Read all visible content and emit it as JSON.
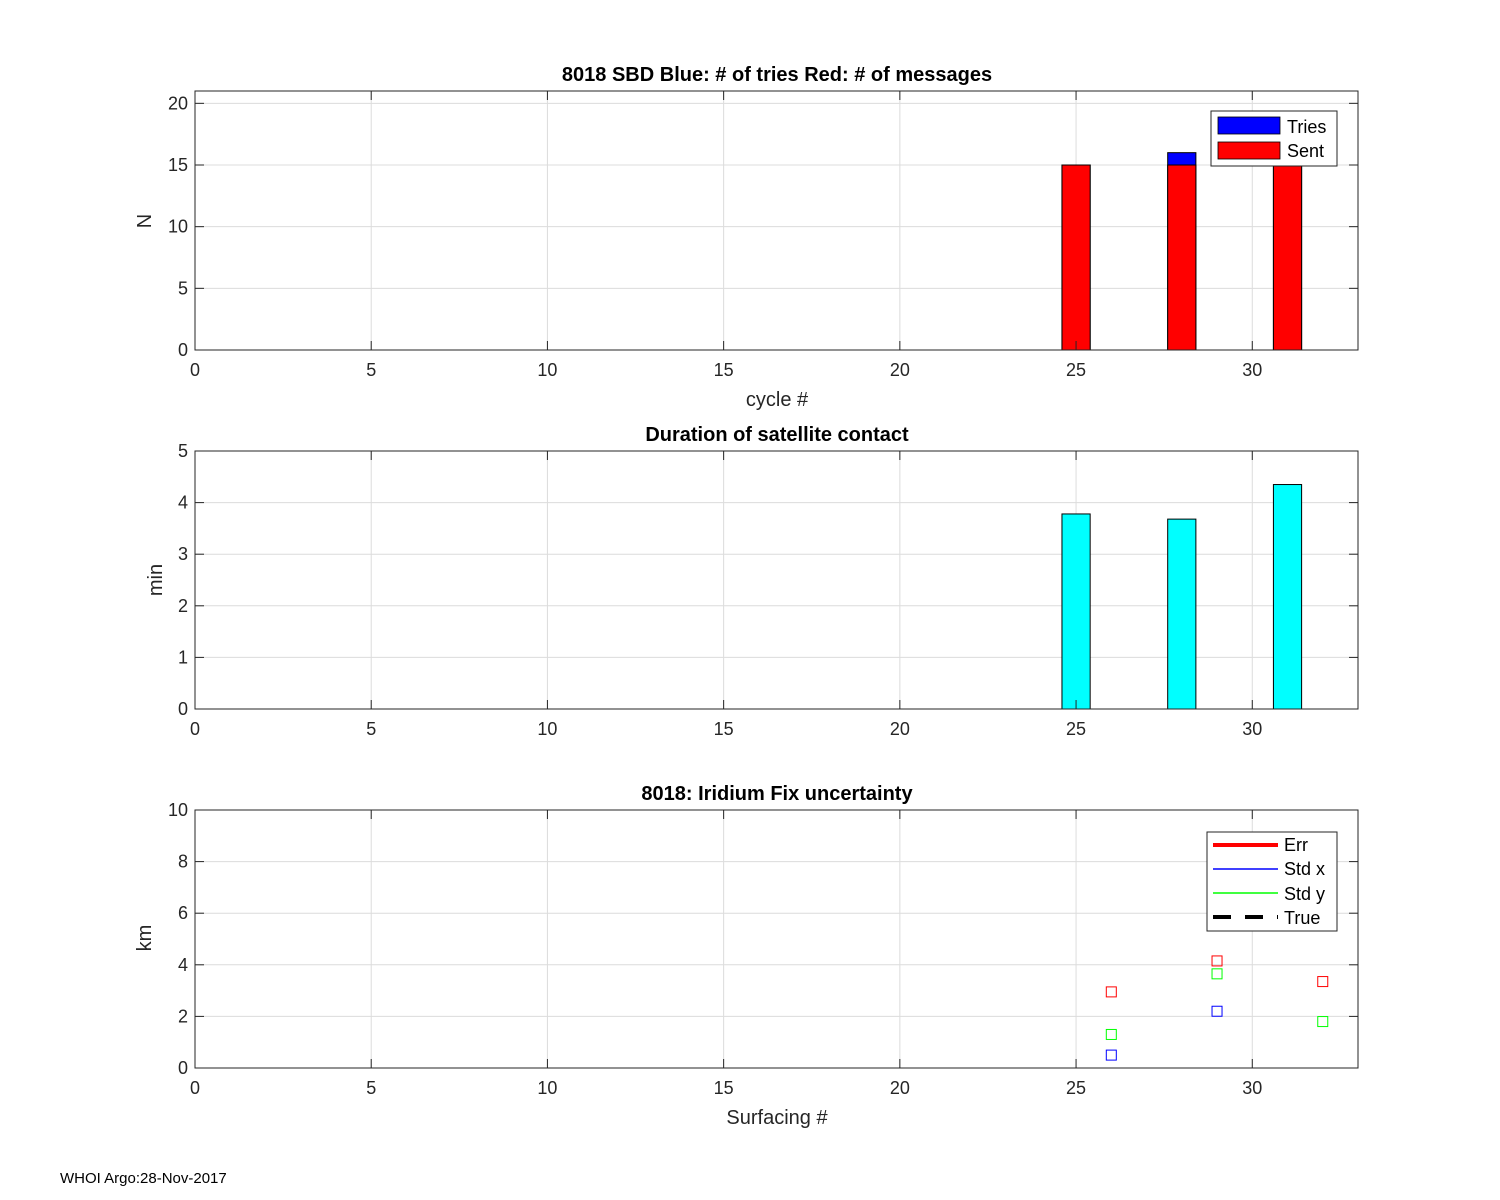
{
  "footer": "WHOI Argo:28-Nov-2017",
  "chart_data": [
    {
      "type": "bar",
      "title": "8018 SBD  Blue: # of tries   Red: # of messages",
      "xlabel": "cycle #",
      "ylabel": "N",
      "xlim": [
        0,
        33
      ],
      "ylim": [
        0,
        21
      ],
      "xticks": [
        0,
        5,
        10,
        15,
        20,
        25,
        30
      ],
      "yticks": [
        0,
        5,
        10,
        15,
        20
      ],
      "grid": true,
      "legend_position": "top-right",
      "series": [
        {
          "name": "Tries",
          "color": "#0000ff",
          "x": [
            25,
            28,
            31
          ],
          "values": [
            15,
            16,
            15
          ]
        },
        {
          "name": "Sent",
          "color": "#ff0000",
          "x": [
            25,
            28,
            31
          ],
          "values": [
            15,
            15,
            15
          ]
        }
      ]
    },
    {
      "type": "bar",
      "title": "Duration of satellite contact",
      "xlabel": "",
      "ylabel": "min",
      "xlim": [
        0,
        33
      ],
      "ylim": [
        0,
        5
      ],
      "xticks": [
        0,
        5,
        10,
        15,
        20,
        25,
        30
      ],
      "yticks": [
        0,
        1,
        2,
        3,
        4,
        5
      ],
      "grid": true,
      "series": [
        {
          "color": "#00ffff",
          "x": [
            25,
            28,
            31
          ],
          "values": [
            3.78,
            3.68,
            4.35
          ]
        }
      ]
    },
    {
      "type": "scatter",
      "title": "8018: Iridium Fix uncertainty",
      "xlabel": "Surfacing #",
      "ylabel": "km",
      "xlim": [
        0,
        33
      ],
      "ylim": [
        0,
        10
      ],
      "xticks": [
        0,
        5,
        10,
        15,
        20,
        25,
        30
      ],
      "yticks": [
        0,
        2,
        4,
        6,
        8,
        10
      ],
      "grid": true,
      "legend_position": "top-right",
      "series": [
        {
          "name": "Err",
          "color": "#ff0000",
          "line": "solid-thick",
          "x": [
            26,
            29,
            32
          ],
          "values": [
            2.95,
            4.15,
            3.35
          ]
        },
        {
          "name": "Std x",
          "color": "#0000ff",
          "line": "solid",
          "x": [
            26,
            29
          ],
          "values": [
            0.5,
            2.2
          ]
        },
        {
          "name": "Std y",
          "color": "#00ff00",
          "line": "solid",
          "x": [
            26,
            29,
            32
          ],
          "values": [
            1.3,
            3.65,
            1.8
          ]
        },
        {
          "name": "True",
          "color": "#000000",
          "line": "dashed",
          "x": [],
          "values": []
        }
      ]
    }
  ]
}
